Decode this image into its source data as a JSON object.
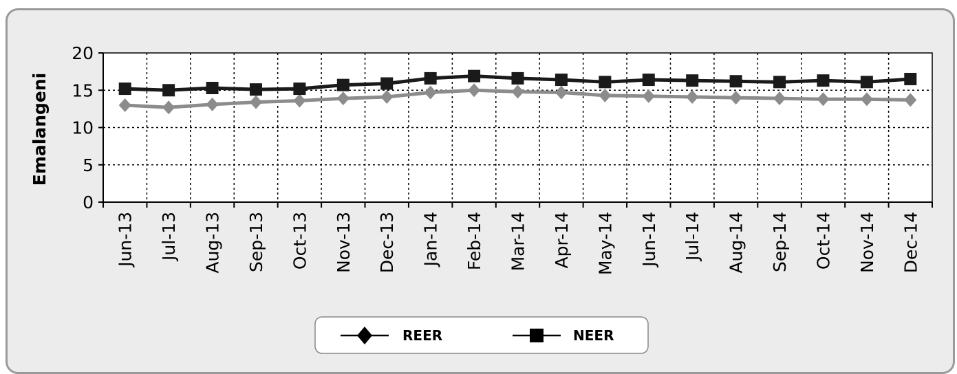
{
  "chart_data": {
    "type": "line",
    "ylabel": "Emalangeni",
    "xlabel": "",
    "ylim": [
      0,
      20
    ],
    "yticks": [
      0,
      5,
      10,
      15,
      20
    ],
    "grid": true,
    "legend_position": "bottom-center",
    "categories": [
      "Jun-13",
      "Jul-13",
      "Aug-13",
      "Sep-13",
      "Oct-13",
      "Nov-13",
      "Dec-13",
      "Jan-14",
      "Feb-14",
      "Mar-14",
      "Apr-14",
      "May-14",
      "Jun-14",
      "Jul-14",
      "Aug-14",
      "Sep-14",
      "Oct-14",
      "Nov-14",
      "Dec-14"
    ],
    "series": [
      {
        "name": "REER",
        "marker": "diamond",
        "color": "#8c8c8c",
        "values": [
          13.0,
          12.7,
          13.1,
          13.4,
          13.6,
          13.9,
          14.1,
          14.7,
          15.0,
          14.8,
          14.7,
          14.3,
          14.2,
          14.1,
          14.0,
          13.9,
          13.8,
          13.8,
          13.7
        ]
      },
      {
        "name": "NEER",
        "marker": "square",
        "color": "#1a1a1a",
        "values": [
          15.2,
          15.0,
          15.3,
          15.1,
          15.2,
          15.7,
          15.9,
          16.6,
          16.9,
          16.6,
          16.4,
          16.1,
          16.4,
          16.3,
          16.2,
          16.1,
          16.3,
          16.1,
          16.5
        ]
      }
    ]
  }
}
